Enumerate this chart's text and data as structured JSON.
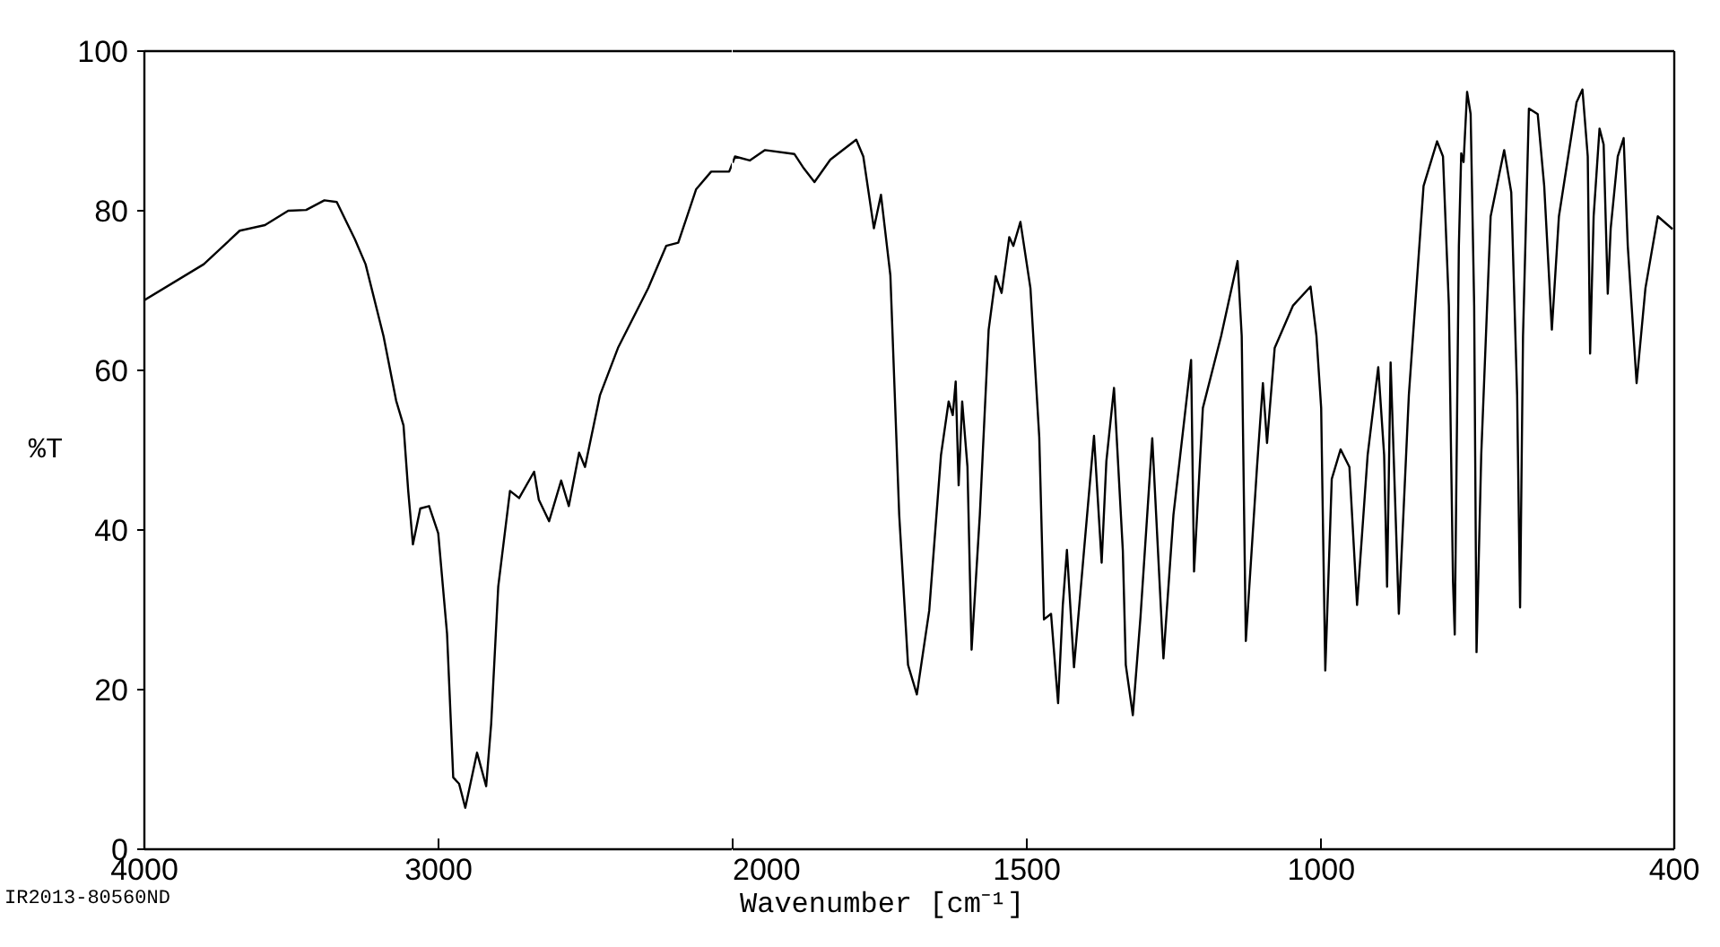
{
  "chart_data": [
    {
      "type": "line",
      "ylabel": "%T",
      "annotations": [
        "IR2013-80560ND"
      ],
      "xlim": [
        4000,
        2000
      ],
      "xticks": [
        4000,
        3000
      ],
      "ylim": [
        0,
        100
      ],
      "yticks": [
        0,
        20,
        40,
        60,
        80,
        100
      ],
      "series": [
        {
          "color": "#000000",
          "x": [
            4000,
            3798,
            3676,
            3590,
            3511,
            3450,
            3388,
            3346,
            3284,
            3248,
            3187,
            3144,
            3119,
            3103,
            3087,
            3062,
            3032,
            3001,
            2971,
            2950,
            2930,
            2909,
            2883,
            2869,
            2838,
            2821,
            2797,
            2757,
            2726,
            2675,
            2659,
            2624,
            2583,
            2557,
            2522,
            2502,
            2451,
            2390,
            2287,
            2226,
            2185,
            2124,
            2073,
            2012,
            2000
          ],
          "values": [
            68.8,
            73.3,
            77.5,
            78.2,
            80.0,
            80.1,
            81.3,
            81.1,
            76.4,
            73.3,
            64.3,
            56.2,
            53.1,
            44.9,
            38.2,
            42.7,
            43.0,
            39.6,
            27.0,
            9.0,
            8.2,
            5.2,
            9.7,
            12.1,
            7.9,
            15.7,
            32.9,
            44.9,
            44.0,
            47.3,
            43.8,
            41.1,
            46.2,
            43.0,
            49.7,
            47.9,
            56.9,
            62.8,
            70.3,
            75.6,
            76.0,
            82.7,
            84.9,
            84.9,
            86.0
          ]
        }
      ]
    },
    {
      "type": "line",
      "xlabel": "Wavenumber [cm⁻¹]",
      "xlim": [
        2000,
        400
      ],
      "xticks": [
        2000,
        1500,
        1000,
        400
      ],
      "ylim": [
        0,
        100
      ],
      "tick_labels": "x",
      "series": [
        {
          "color": "#000000",
          "x": [
            2000,
            1996,
            1971,
            1945,
            1895,
            1879,
            1861,
            1834,
            1790,
            1778,
            1760,
            1748,
            1732,
            1717,
            1702,
            1687,
            1666,
            1646,
            1633,
            1626,
            1621,
            1616,
            1610,
            1601,
            1594,
            1580,
            1565,
            1553,
            1543,
            1530,
            1523,
            1511,
            1494,
            1479,
            1471,
            1459,
            1447,
            1439,
            1432,
            1420,
            1403,
            1386,
            1373,
            1365,
            1352,
            1337,
            1332,
            1320,
            1307,
            1287,
            1268,
            1251,
            1221,
            1216,
            1201,
            1170,
            1142,
            1135,
            1128,
            1109,
            1099,
            1092,
            1079,
            1048,
            1018,
            1008,
            1000,
            998,
            993,
            982,
            967,
            952,
            939,
            921,
            903,
            893,
            888,
            882,
            868,
            851,
            826,
            803,
            793,
            783,
            776,
            773,
            766,
            762,
            758,
            752,
            746,
            740,
            736,
            728,
            712,
            689,
            677,
            667,
            662,
            657,
            647,
            632,
            621,
            608,
            596,
            566,
            556,
            547,
            543,
            537,
            527,
            520,
            513,
            508,
            496,
            486,
            479,
            464,
            449,
            428,
            403
          ],
          "values": [
            86.0,
            86.8,
            86.3,
            87.6,
            87.1,
            85.3,
            83.6,
            86.4,
            88.9,
            86.8,
            77.8,
            82.0,
            71.9,
            41.9,
            23.1,
            19.4,
            29.9,
            49.4,
            56.1,
            54.4,
            58.6,
            45.6,
            56.1,
            47.9,
            25.0,
            41.9,
            65.1,
            71.8,
            69.7,
            76.7,
            75.6,
            78.6,
            70.3,
            51.6,
            28.8,
            29.5,
            18.3,
            30.6,
            37.5,
            22.8,
            37.4,
            51.8,
            35.9,
            48.6,
            57.8,
            37.4,
            23.1,
            16.8,
            29.1,
            51.5,
            23.9,
            41.9,
            61.3,
            34.8,
            55.3,
            64.3,
            73.7,
            64.3,
            26.1,
            47.9,
            58.4,
            50.9,
            62.8,
            68.1,
            70.5,
            64.3,
            55.3,
            45.6,
            22.4,
            46.4,
            50.1,
            47.9,
            30.6,
            49.4,
            60.4,
            49.4,
            32.9,
            61.0,
            29.5,
            56.9,
            83.1,
            88.7,
            86.8,
            68.1,
            33.6,
            26.9,
            75.6,
            87.2,
            86.1,
            94.9,
            92.1,
            68.1,
            24.7,
            49.4,
            79.3,
            87.6,
            82.3,
            56.9,
            30.3,
            64.3,
            92.8,
            92.1,
            83.1,
            65.1,
            79.3,
            93.6,
            95.2,
            86.8,
            62.1,
            79.3,
            90.3,
            88.3,
            69.6,
            77.8,
            86.8,
            89.1,
            75.6,
            58.4,
            70.3,
            79.3,
            77.7
          ]
        }
      ]
    }
  ]
}
